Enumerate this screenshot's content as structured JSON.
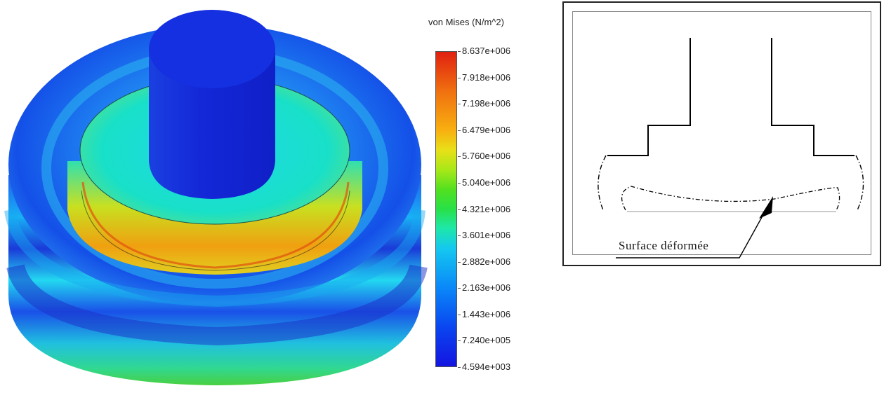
{
  "legend": {
    "title": "von Mises (N/m^2)",
    "ticks": [
      "8.637e+006",
      "7.918e+006",
      "7.198e+006",
      "6.479e+006",
      "5.760e+006",
      "5.040e+006",
      "4.321e+006",
      "3.601e+006",
      "2.882e+006",
      "2.163e+006",
      "1.443e+006",
      "7.240e+005",
      "4.594e+003"
    ],
    "max": 8637000,
    "min": 4594
  },
  "schematic": {
    "label": "Surface déformée"
  },
  "colors": {
    "low": "#1414e0",
    "mid": "#28e048",
    "high": "#e02010"
  }
}
